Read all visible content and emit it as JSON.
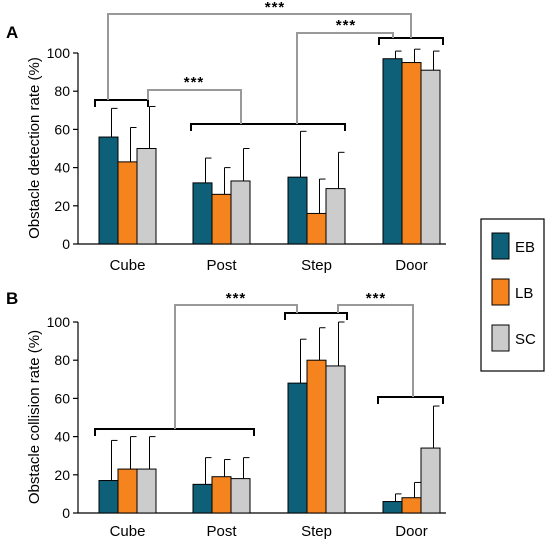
{
  "colors": {
    "EB": "#0e5f78",
    "LB": "#f5841f",
    "SC": "#cccccc",
    "bracket_black": "#000000",
    "bracket_gray": "#999999"
  },
  "legend": {
    "items": [
      {
        "key": "EB",
        "label": "EB"
      },
      {
        "key": "LB",
        "label": "LB"
      },
      {
        "key": "SC",
        "label": "SC"
      }
    ]
  },
  "chart_data": [
    {
      "panel": "A",
      "type": "bar",
      "ylabel": "Obstacle detection rate (%)",
      "ylim": [
        0,
        100
      ],
      "yticks": [
        "0",
        "20",
        "40",
        "60",
        "80",
        "100"
      ],
      "categories": [
        "Cube",
        "Post",
        "Step",
        "Door"
      ],
      "series": [
        {
          "name": "EB",
          "values": [
            56,
            32,
            35,
            97
          ],
          "errors": [
            15,
            13,
            24,
            4
          ]
        },
        {
          "name": "LB",
          "values": [
            43,
            26,
            16,
            95
          ],
          "errors": [
            18,
            14,
            18,
            7
          ]
        },
        {
          "name": "SC",
          "values": [
            50,
            33,
            29,
            91
          ],
          "errors": [
            22,
            17,
            19,
            10
          ]
        }
      ],
      "annotations": [
        {
          "text": "***",
          "between": [
            "Cube",
            "Door"
          ]
        },
        {
          "text": "***",
          "between": [
            "Step",
            "Door"
          ]
        },
        {
          "text": "***",
          "between": [
            "Cube",
            "Post/Step"
          ]
        }
      ]
    },
    {
      "panel": "B",
      "type": "bar",
      "ylabel": "Obstacle collision rate (%)",
      "ylim": [
        0,
        100
      ],
      "yticks": [
        "0",
        "20",
        "40",
        "60",
        "80",
        "100"
      ],
      "categories": [
        "Cube",
        "Post",
        "Step",
        "Door"
      ],
      "series": [
        {
          "name": "EB",
          "values": [
            17,
            15,
            68,
            6
          ],
          "errors": [
            21,
            14,
            23,
            4
          ]
        },
        {
          "name": "LB",
          "values": [
            23,
            19,
            80,
            8
          ],
          "errors": [
            17,
            9,
            17,
            8
          ]
        },
        {
          "name": "SC",
          "values": [
            23,
            18,
            77,
            34
          ],
          "errors": [
            17,
            11,
            23,
            22
          ]
        }
      ],
      "annotations": [
        {
          "text": "***",
          "between": [
            "Cube/Post",
            "Step"
          ]
        },
        {
          "text": "***",
          "between": [
            "Step",
            "Door"
          ]
        }
      ]
    }
  ]
}
